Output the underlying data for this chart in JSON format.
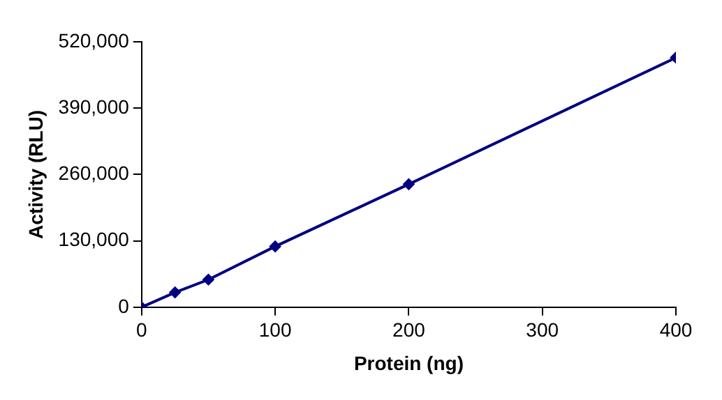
{
  "chart_data": {
    "type": "line",
    "xlabel": "Protein (ng)",
    "ylabel": "Activity (RLU)",
    "x": [
      0,
      25,
      50,
      100,
      200,
      400
    ],
    "series": [
      {
        "color": "#000080",
        "values": [
          0,
          29000,
          54000,
          119000,
          241000,
          489000
        ]
      }
    ],
    "xlim": [
      0,
      400
    ],
    "xticks": [
      0,
      100,
      200,
      300,
      400
    ],
    "ylim": [
      0,
      520000
    ],
    "yticks": [
      {
        "value": 0,
        "label": "0"
      },
      {
        "value": 130000,
        "label": "130,000"
      },
      {
        "value": 260000,
        "label": "260,000"
      },
      {
        "value": 390000,
        "label": "390,000"
      },
      {
        "value": 520000,
        "label": "520,000"
      }
    ],
    "grid": false,
    "legend": false,
    "marker": "diamond",
    "line_style": "solid"
  }
}
